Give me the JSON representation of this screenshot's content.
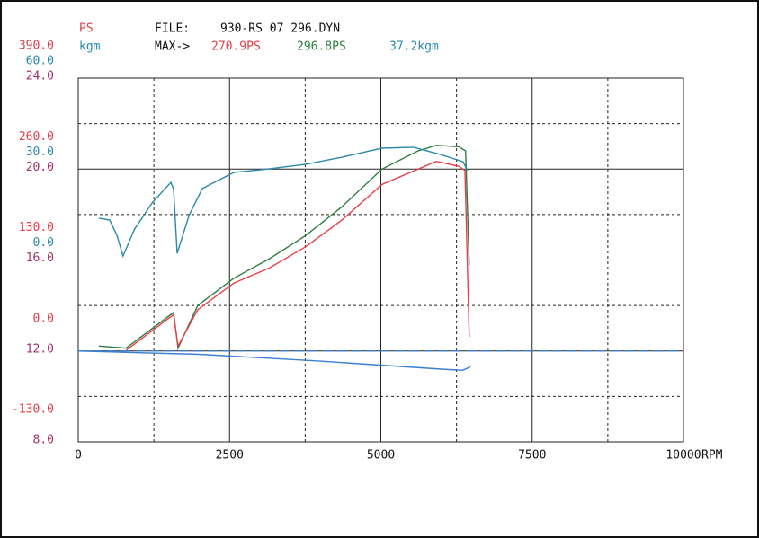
{
  "chart_data": {
    "type": "line",
    "annotations": {
      "ps": "PS",
      "kgm": "kgm",
      "file_label": "FILE:",
      "file": "930-RS 07 296.DYN",
      "max_label": "MAX->",
      "max_ps_1": "270.9PS",
      "max_ps_2": "296.8PS",
      "max_kgm": "37.2kgm"
    },
    "xlabel": "RPM",
    "xlim": [
      0,
      10000
    ],
    "xticks": [
      0,
      2500,
      5000,
      7500,
      10000
    ],
    "xminor": [
      1250,
      3750,
      6250,
      8750
    ],
    "ylim": [
      -130,
      390
    ],
    "yticks": [
      {
        "value": 390,
        "label": "390.0"
      },
      {
        "value": 260,
        "label": "260.0"
      },
      {
        "value": 130,
        "label": "130.0"
      },
      {
        "value": 0,
        "label": "0.0"
      },
      {
        "value": -130,
        "label": "-130.0"
      }
    ],
    "yminor": [
      325,
      195,
      65,
      -65
    ],
    "ycolor": "#e0404a",
    "y2lim": [
      -60,
      60
    ],
    "y2ticks": [
      {
        "value": 60,
        "label": "60.0"
      },
      {
        "value": 30,
        "label": "30.0"
      },
      {
        "value": 0,
        "label": "0.0"
      }
    ],
    "y2color": "#2a88a8",
    "y3lim": [
      8,
      24
    ],
    "y3ticks": [
      {
        "value": 24,
        "label": "24.0"
      },
      {
        "value": 20,
        "label": "20.0"
      },
      {
        "value": 16,
        "label": "16.0"
      },
      {
        "value": 12,
        "label": "12.0"
      },
      {
        "value": 8,
        "label": "8.0"
      }
    ],
    "y3color": "#a0306a",
    "series": [
      {
        "color": "#2e7d40",
        "axis": "y",
        "x": [
          340,
          790,
          1575,
          1650,
          1975,
          2570,
          3165,
          3760,
          4355,
          5020,
          5615,
          5915,
          6285,
          6400,
          6460
        ],
        "values": [
          7,
          4,
          55,
          4,
          65,
          104,
          132,
          165,
          206,
          260,
          286,
          294,
          292,
          286,
          123
        ]
      },
      {
        "color": "#e8404a",
        "axis": "y",
        "x": [
          790,
          1575,
          1650,
          1975,
          2570,
          3165,
          3760,
          4355,
          5020,
          5615,
          5915,
          6285,
          6390,
          6460
        ],
        "values": [
          1,
          52,
          7,
          59,
          97,
          119,
          149,
          187,
          238,
          260,
          271,
          264,
          258,
          20
        ]
      },
      {
        "color": "#2a88a8",
        "axis": "y2",
        "x": [
          340,
          520,
          640,
          740,
          930,
          1230,
          1530,
          1575,
          1635,
          1830,
          2050,
          2570,
          3165,
          3760,
          4355,
          5020,
          5540,
          5985,
          6360,
          6430
        ],
        "values": [
          13.8,
          13.2,
          8.1,
          1.3,
          10.2,
          19.1,
          25.6,
          23.5,
          2.2,
          14.7,
          23.6,
          28.9,
          30.1,
          31.6,
          33.9,
          36.9,
          37.2,
          34.8,
          32.4,
          29.5
        ]
      },
      {
        "color": "#3a7fd0",
        "axis": "y3",
        "x": [
          0,
          2000,
          4000,
          6000,
          6350,
          6480
        ],
        "values": [
          12.0,
          11.85,
          11.55,
          11.2,
          11.15,
          11.3
        ]
      },
      {
        "color": "#3a7fd0",
        "axis": "y3",
        "dashed": true,
        "x": [
          0,
          10000
        ],
        "values": [
          12,
          12
        ]
      }
    ]
  }
}
